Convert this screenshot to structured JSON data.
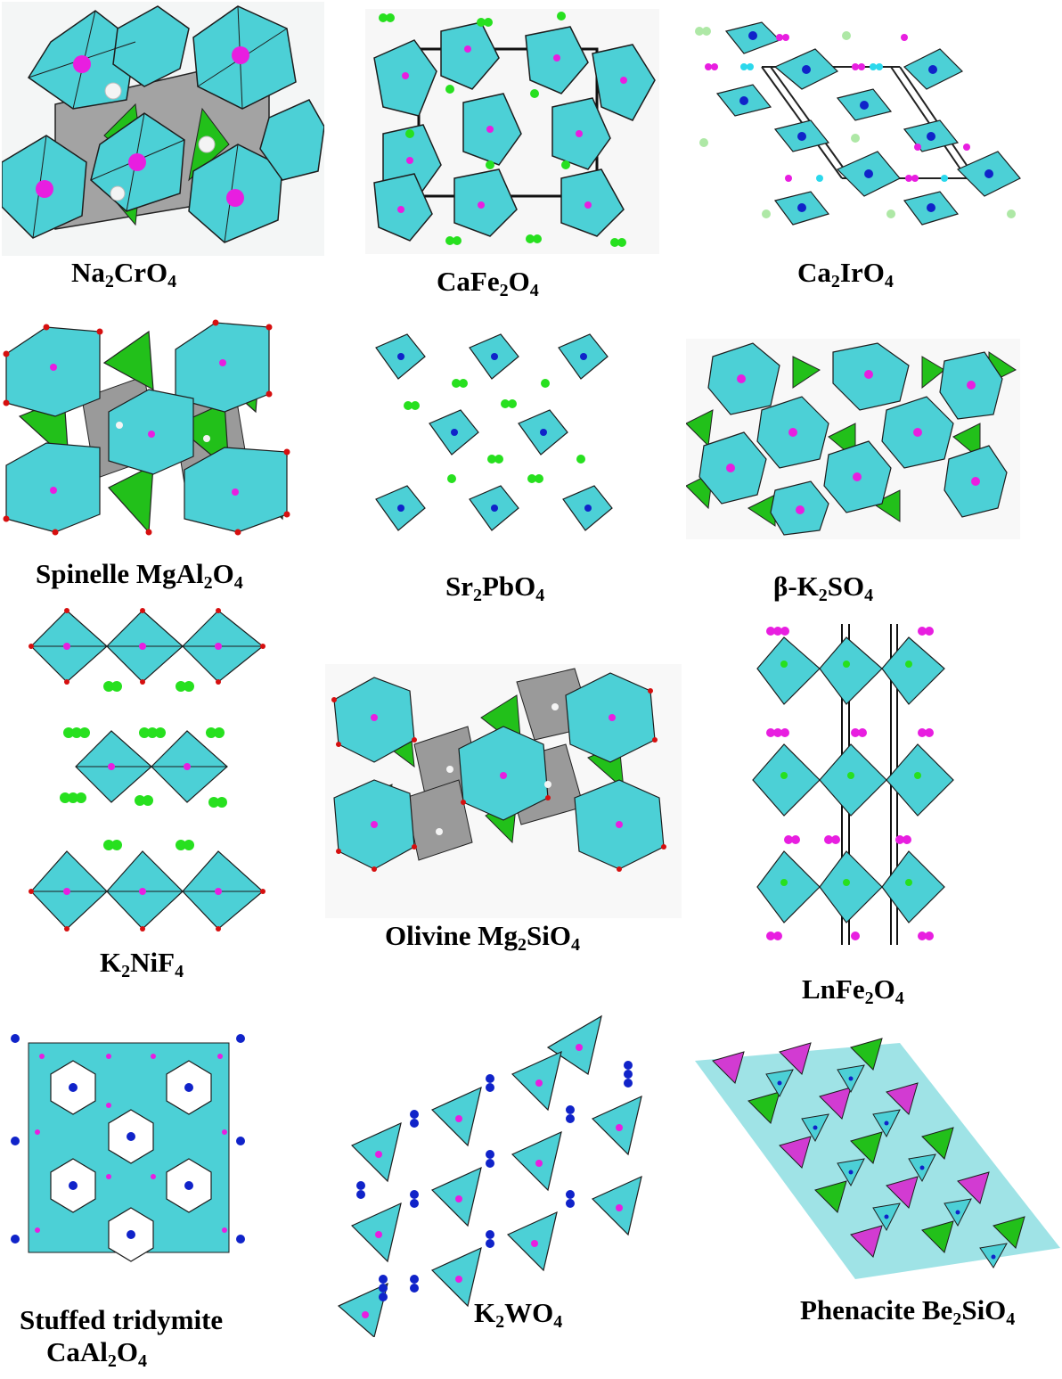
{
  "colors": {
    "octahedron": "#4cd0d6",
    "octahedron_dark": "#2aa6ad",
    "tetra_green": "#22c01a",
    "tetra_gray": "#9a9a9a",
    "tetra_magenta": "#d23bd2",
    "atom_magenta": "#e81ee0",
    "atom_green": "#27e01f",
    "atom_blue": "#1023c9",
    "atom_white": "#f4f4f4",
    "atom_red": "#d60f0f",
    "atom_cyan": "#2bd8ec",
    "atom_lightgreen": "#aee8a6"
  },
  "structures": [
    {
      "id": "na2cro4",
      "parts": [
        [
          "Na",
          "2"
        ],
        [
          "CrO",
          "4"
        ]
      ]
    },
    {
      "id": "cafe2o4",
      "parts": [
        [
          "CaFe",
          "2"
        ],
        [
          "O",
          "4"
        ]
      ]
    },
    {
      "id": "ca2iro4",
      "parts": [
        [
          "Ca",
          "2"
        ],
        [
          "IrO",
          "4"
        ]
      ]
    },
    {
      "id": "spinel",
      "parts": [
        [
          "Spinelle MgAl",
          "2"
        ],
        [
          "O",
          "4"
        ]
      ]
    },
    {
      "id": "sr2pbo4",
      "parts": [
        [
          "Sr",
          "2"
        ],
        [
          "PbO",
          "4"
        ]
      ]
    },
    {
      "id": "bk2so4",
      "parts": [
        [
          "β-K",
          "2"
        ],
        [
          "SO",
          "4"
        ]
      ]
    },
    {
      "id": "k2nif4",
      "parts": [
        [
          "K",
          "2"
        ],
        [
          "NiF",
          "4"
        ]
      ]
    },
    {
      "id": "olivine",
      "parts": [
        [
          "Olivine Mg",
          "2"
        ],
        [
          "SiO",
          "4"
        ]
      ]
    },
    {
      "id": "lnfe2o4",
      "parts": [
        [
          "LnFe",
          "2"
        ],
        [
          "O",
          "4"
        ]
      ]
    },
    {
      "id": "tridymite",
      "line1": "Stuffed tridymite",
      "parts": [
        [
          "CaAl",
          "2"
        ],
        [
          "O",
          "4"
        ]
      ]
    },
    {
      "id": "k2wo4",
      "parts": [
        [
          "K",
          "2"
        ],
        [
          "WO",
          "4"
        ]
      ]
    },
    {
      "id": "phenacite",
      "parts": [
        [
          "Phenacite Be",
          "2"
        ],
        [
          "SiO",
          "4"
        ]
      ]
    }
  ]
}
